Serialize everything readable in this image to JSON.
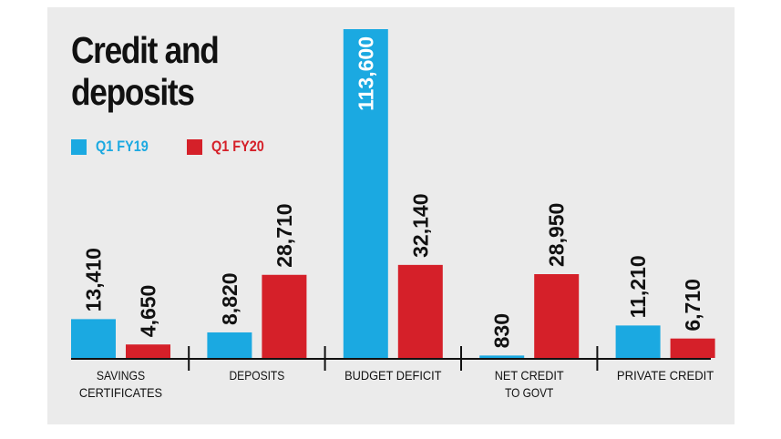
{
  "chart_data": {
    "type": "bar",
    "title": "Credit and deposits",
    "categories": [
      [
        "SAVINGS",
        "CERTIFICATES"
      ],
      [
        "DEPOSITS"
      ],
      [
        "BUDGET DEFICIT"
      ],
      [
        "NET CREDIT",
        "TO GOVT"
      ],
      [
        "PRIVATE CREDIT"
      ]
    ],
    "series": [
      {
        "name": "Q1 FY19",
        "color": "#1ba9e1",
        "values": [
          13410,
          8820,
          113600,
          830,
          11210
        ]
      },
      {
        "name": "Q1 FY20",
        "color": "#d52029",
        "values": [
          4650,
          28710,
          32140,
          28950,
          6710
        ]
      }
    ],
    "value_labels": [
      [
        "13,410",
        "8,820",
        "113,600",
        "830",
        "11,210"
      ],
      [
        "4,650",
        "28,710",
        "32,140",
        "28,950",
        "6,710"
      ]
    ],
    "xlabel": "",
    "ylabel": "",
    "ylim": [
      0,
      113600
    ],
    "grid": false,
    "legend_position": "top-left"
  }
}
